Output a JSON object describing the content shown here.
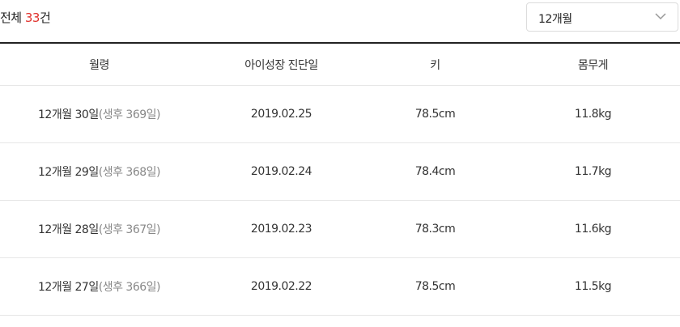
{
  "summary": {
    "prefix": "전체 ",
    "count": "33",
    "suffix": "건"
  },
  "filter": {
    "selected": "12개월"
  },
  "table": {
    "headers": [
      "월령",
      "아이성장 진단일",
      "키",
      "몸무게"
    ],
    "rows": [
      {
        "age": "12개월 30일",
        "age_detail": "(생후 369일)",
        "date": "2019.02.25",
        "height": "78.5cm",
        "weight": "11.8kg"
      },
      {
        "age": "12개월 29일",
        "age_detail": "(생후 368일)",
        "date": "2019.02.24",
        "height": "78.4cm",
        "weight": "11.7kg"
      },
      {
        "age": "12개월 28일",
        "age_detail": "(생후 367일)",
        "date": "2019.02.23",
        "height": "78.3cm",
        "weight": "11.6kg"
      },
      {
        "age": "12개월 27일",
        "age_detail": "(생후 366일)",
        "date": "2019.02.22",
        "height": "78.5cm",
        "weight": "11.5kg"
      }
    ]
  }
}
